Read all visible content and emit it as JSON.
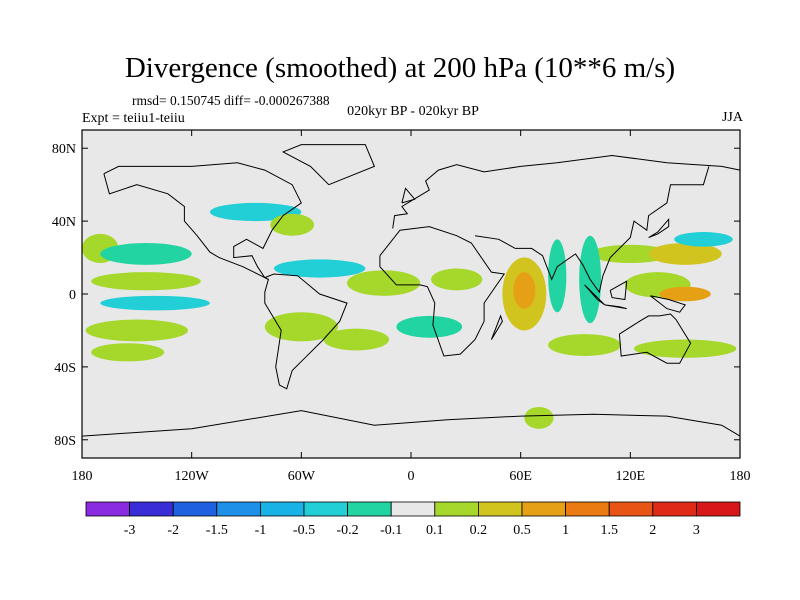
{
  "title": "Divergence (smoothed) at 200 hPa (10**6 m/s)",
  "stats_line": "rmsd= 0.150745 diff= -0.000267388",
  "left_subtitle": "Expt = teiiu1-teiiu",
  "center_subtitle": "020kyr BP - 020kyr BP",
  "right_subtitle": "JJA",
  "chart_data": {
    "type": "heatmap",
    "title": "Divergence (smoothed) at 200 hPa (10**6 m/s)",
    "field": "200 hPa divergence difference, smoothed",
    "projection": "cylindrical equidistant",
    "x_range": [
      -180,
      180
    ],
    "y_range": [
      -90,
      90
    ],
    "x_ticks": [
      "180",
      "120W",
      "60W",
      "0",
      "60E",
      "120E",
      "180"
    ],
    "y_ticks": [
      "80N",
      "40N",
      "0",
      "40S",
      "80S"
    ],
    "colorbar": {
      "levels": [
        "-3",
        "-2",
        "-1.5",
        "-1",
        "-0.5",
        "-0.2",
        "-0.1",
        "0.1",
        "0.2",
        "0.5",
        "1",
        "1.5",
        "2",
        "3"
      ],
      "colors": [
        "#8a2be2",
        "#3a2dd8",
        "#1f60e0",
        "#1e90e8",
        "#19b2e6",
        "#22cfd6",
        "#22d4a2",
        "#e8e8e8",
        "#a5d82a",
        "#d2c41e",
        "#e6a015",
        "#ea7a12",
        "#e85414",
        "#e02a18",
        "#d81818"
      ]
    },
    "background_color": "#e8e8e8",
    "regions": [
      {
        "lon": 120,
        "lat": 22,
        "rx": 22,
        "ry": 5,
        "level": 8
      },
      {
        "lon": 150,
        "lat": 22,
        "rx": 20,
        "ry": 6,
        "level": 9
      },
      {
        "lon": 135,
        "lat": 5,
        "rx": 18,
        "ry": 7,
        "level": 8
      },
      {
        "lon": 150,
        "lat": 0,
        "rx": 14,
        "ry": 4,
        "level": 10
      },
      {
        "lon": 62,
        "lat": 0,
        "rx": 12,
        "ry": 20,
        "level": 9
      },
      {
        "lon": 62,
        "lat": 2,
        "rx": 6,
        "ry": 10,
        "level": 10
      },
      {
        "lon": 80,
        "lat": 10,
        "rx": 5,
        "ry": 20,
        "level": 6
      },
      {
        "lon": 98,
        "lat": 8,
        "rx": 6,
        "ry": 24,
        "level": 6
      },
      {
        "lon": 160,
        "lat": 30,
        "rx": 16,
        "ry": 4,
        "level": 5
      },
      {
        "lon": -170,
        "lat": 25,
        "rx": 10,
        "ry": 8,
        "level": 8
      },
      {
        "lon": -145,
        "lat": 22,
        "rx": 25,
        "ry": 6,
        "level": 6
      },
      {
        "lon": -145,
        "lat": 7,
        "rx": 30,
        "ry": 5,
        "level": 8
      },
      {
        "lon": -140,
        "lat": -5,
        "rx": 30,
        "ry": 4,
        "level": 5
      },
      {
        "lon": -150,
        "lat": -20,
        "rx": 28,
        "ry": 6,
        "level": 8
      },
      {
        "lon": -155,
        "lat": -32,
        "rx": 20,
        "ry": 5,
        "level": 8
      },
      {
        "lon": -50,
        "lat": 14,
        "rx": 25,
        "ry": 5,
        "level": 5
      },
      {
        "lon": -60,
        "lat": -18,
        "rx": 20,
        "ry": 8,
        "level": 8
      },
      {
        "lon": -30,
        "lat": -25,
        "rx": 18,
        "ry": 6,
        "level": 8
      },
      {
        "lon": 10,
        "lat": -18,
        "rx": 18,
        "ry": 6,
        "level": 6
      },
      {
        "lon": -15,
        "lat": 6,
        "rx": 20,
        "ry": 7,
        "level": 8
      },
      {
        "lon": 25,
        "lat": 8,
        "rx": 14,
        "ry": 6,
        "level": 8
      },
      {
        "lon": -85,
        "lat": 45,
        "rx": 25,
        "ry": 5,
        "level": 5
      },
      {
        "lon": -65,
        "lat": 38,
        "rx": 12,
        "ry": 6,
        "level": 8
      },
      {
        "lon": 95,
        "lat": -28,
        "rx": 20,
        "ry": 6,
        "level": 8
      },
      {
        "lon": 150,
        "lat": -30,
        "rx": 28,
        "ry": 5,
        "level": 8
      },
      {
        "lon": 70,
        "lat": -68,
        "rx": 8,
        "ry": 6,
        "level": 8
      }
    ]
  }
}
